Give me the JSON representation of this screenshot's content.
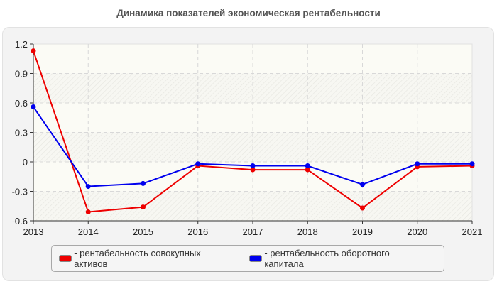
{
  "chart_data": {
    "type": "line",
    "title": "Динамика показателей экономическая рентабельности",
    "xlabel": "",
    "ylabel": "",
    "x": [
      "2013",
      "2014",
      "2015",
      "2016",
      "2017",
      "2018",
      "2019",
      "2020",
      "2021"
    ],
    "yticks": [
      "1.2",
      "0.9",
      "0.6",
      "0.3",
      "0",
      "-0.3",
      "-0.6"
    ],
    "ylim": [
      -0.6,
      1.2
    ],
    "grid": true,
    "legend_position": "bottom",
    "series": [
      {
        "name": "- рентабельность совокупных активов",
        "color": "#ee0000",
        "values": [
          1.13,
          -0.51,
          -0.46,
          -0.04,
          -0.08,
          -0.08,
          -0.47,
          -0.05,
          -0.04
        ]
      },
      {
        "name": "- рентабельность оборотного капитала",
        "color": "#0000ee",
        "values": [
          0.56,
          -0.25,
          -0.22,
          -0.02,
          -0.04,
          -0.04,
          -0.23,
          -0.02,
          -0.02
        ]
      }
    ]
  }
}
